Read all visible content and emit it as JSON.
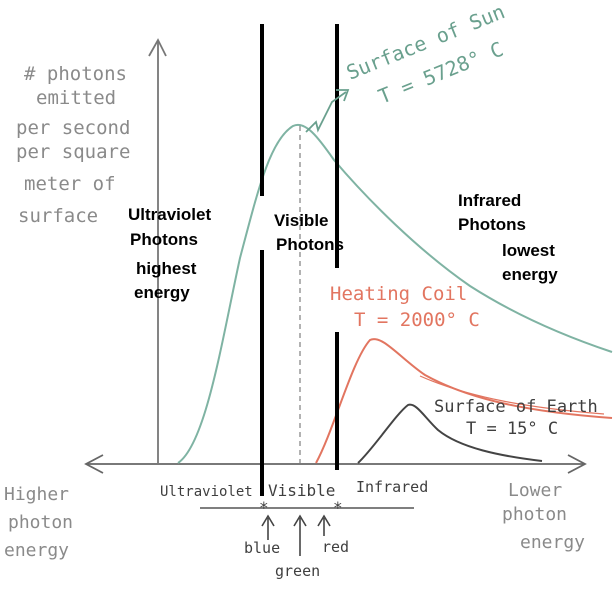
{
  "y_axis_label": [
    "# photons",
    "emitted",
    "per second",
    "per square",
    "meter of",
    "surface"
  ],
  "x_axis_left_label": [
    "Higher",
    "photon",
    "energy"
  ],
  "x_axis_right_label": [
    "Lower",
    "photon",
    "energy"
  ],
  "axis_regions": {
    "ultraviolet": "Ultraviolet",
    "visible": "Visible",
    "infrared": "Infrared"
  },
  "color_markers": {
    "blue": "blue",
    "green": "green",
    "red": "red"
  },
  "region_labels": {
    "ultraviolet": [
      "Ultraviolet",
      "Photons",
      "highest",
      "energy"
    ],
    "visible": [
      "Visible",
      "Photons"
    ],
    "infrared": [
      "Infrared",
      "Photons",
      "lowest",
      "energy"
    ]
  },
  "curves": {
    "sun": {
      "label": [
        "Surface of Sun",
        "T = 5728° C"
      ],
      "color": "#6aa08e"
    },
    "coil": {
      "label": [
        "Heating Coil",
        "T = 2000° C"
      ],
      "color": "#e27560"
    },
    "earth": {
      "label": [
        "Surface of Earth",
        "T = 15° C"
      ],
      "color": "#444444"
    }
  }
}
